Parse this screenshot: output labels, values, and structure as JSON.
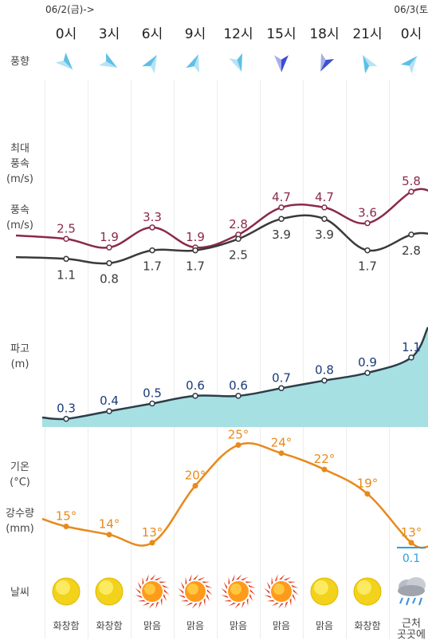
{
  "header": {
    "date_left": "06/2(금)->",
    "date_right": "06/3(토"
  },
  "hours": [
    "0시",
    "3시",
    "6시",
    "9시",
    "12시",
    "15시",
    "18시",
    "21시",
    "0시"
  ],
  "labels": {
    "wind_dir": "풍향",
    "max_wind_1": "최대",
    "max_wind_2": "풍속",
    "max_wind_3": "(m/s)",
    "wind_1": "풍속",
    "wind_2": "(m/s)",
    "wave_1": "파고",
    "wave_2": "(m)",
    "temp_1": "기온",
    "temp_2": "(°C)",
    "precip_1": "강수량",
    "precip_2": "(mm)",
    "weather": "날씨"
  },
  "colors": {
    "max_wind": "#8b2a49",
    "wind": "#3a3a3a",
    "wave_fill": "#a6e0e3",
    "wave_line": "#2e3d48",
    "wave_label": "#1a3a7a",
    "temp": "#e8891c",
    "precip_label": "#29a3d6",
    "arrow_light": "#5cc0e6",
    "arrow_dark": "#3b4fd0"
  },
  "wind_directions": [
    {
      "icon": "wind-arrow-icon",
      "shade": "light",
      "rotation": 225
    },
    {
      "icon": "wind-arrow-icon",
      "shade": "light",
      "rotation": 210
    },
    {
      "icon": "wind-arrow-icon",
      "shade": "light",
      "rotation": 120
    },
    {
      "icon": "wind-arrow-icon",
      "shade": "light",
      "rotation": 110
    },
    {
      "icon": "wind-arrow-icon",
      "shade": "light",
      "rotation": 250
    },
    {
      "icon": "wind-arrow-icon",
      "shade": "dark",
      "rotation": 270
    },
    {
      "icon": "wind-arrow-icon",
      "shade": "dark",
      "rotation": 295
    },
    {
      "icon": "wind-arrow-icon",
      "shade": "light",
      "rotation": 60
    },
    {
      "icon": "wind-arrow-icon",
      "shade": "light",
      "rotation": 130
    }
  ],
  "chart_data": [
    {
      "type": "line",
      "categories": [
        "0시",
        "3시",
        "6시",
        "9시",
        "12시",
        "15시",
        "18시",
        "21시",
        "0시"
      ],
      "series": [
        {
          "name": "최대풍속",
          "values": [
            2.5,
            1.9,
            3.3,
            1.9,
            2.8,
            4.7,
            4.7,
            3.6,
            5.8
          ]
        },
        {
          "name": "풍속",
          "values": [
            1.1,
            0.8,
            1.7,
            1.7,
            2.5,
            3.9,
            3.9,
            1.7,
            2.8
          ]
        }
      ],
      "ylabel": "(m/s)"
    },
    {
      "type": "area",
      "categories": [
        "0시",
        "3시",
        "6시",
        "9시",
        "12시",
        "15시",
        "18시",
        "21시",
        "0시"
      ],
      "series": [
        {
          "name": "파고",
          "values": [
            0.3,
            0.4,
            0.5,
            0.6,
            0.6,
            0.7,
            0.8,
            0.9,
            1.1
          ]
        }
      ],
      "ylabel": "(m)"
    },
    {
      "type": "line",
      "categories": [
        "0시",
        "3시",
        "6시",
        "9시",
        "12시",
        "15시",
        "18시",
        "21시",
        "0시"
      ],
      "series": [
        {
          "name": "기온",
          "values": [
            15,
            14,
            13,
            20,
            25,
            24,
            22,
            19,
            13
          ],
          "unit": "°"
        },
        {
          "name": "강수량",
          "values": [
            null,
            null,
            null,
            null,
            null,
            null,
            null,
            null,
            0.1
          ]
        }
      ],
      "ylabel": "(°C)"
    }
  ],
  "weather": [
    {
      "icon": "cloudy-sun-icon",
      "label": "화창함"
    },
    {
      "icon": "cloudy-sun-icon",
      "label": "화창함"
    },
    {
      "icon": "sunny-icon",
      "label": "맑음"
    },
    {
      "icon": "sunny-icon",
      "label": "맑음"
    },
    {
      "icon": "sunny-icon",
      "label": "맑음"
    },
    {
      "icon": "sunny-icon",
      "label": "맑음"
    },
    {
      "icon": "cloudy-sun-icon",
      "label": "맑음"
    },
    {
      "icon": "cloudy-sun-icon",
      "label": "화창함"
    },
    {
      "icon": "rain-cloud-icon",
      "label": "근처\n곳곳에"
    }
  ]
}
